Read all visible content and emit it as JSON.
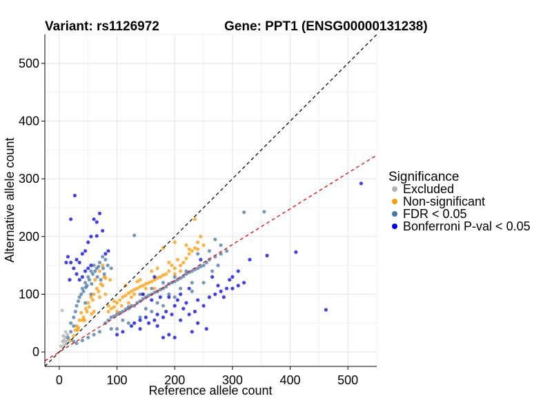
{
  "chart_data": {
    "type": "scatter",
    "title_left": "Variant: rs1126972",
    "title_right": "Gene: PPT1 (ENSG00000131238)",
    "xlabel": "Reference allele count",
    "ylabel": "Alternative allele count",
    "xlim": [
      -25,
      550
    ],
    "ylim": [
      -25,
      550
    ],
    "xticks": [
      0,
      100,
      200,
      300,
      400,
      500
    ],
    "yticks": [
      0,
      100,
      200,
      300,
      400,
      500
    ],
    "legend": {
      "title": "Significance",
      "position": "right",
      "entries": [
        {
          "label": "Excluded",
          "color": "#b3b3b3"
        },
        {
          "label": "Non-significant",
          "color": "#ff9900"
        },
        {
          "label": "FDR < 0.05",
          "color": "#4477aa"
        },
        {
          "label": "Bonferroni P-val < 0.05",
          "color": "#0000ee"
        }
      ]
    },
    "reference_lines": [
      {
        "name": "identity",
        "slope": 1,
        "intercept": 0,
        "color": "#000000",
        "style": "dashed"
      },
      {
        "name": "fitted",
        "slope": 0.62,
        "intercept": 0,
        "color": "#ee0000",
        "style": "dashed"
      }
    ],
    "series": [
      {
        "name": "Excluded",
        "color": "#b3b3b3",
        "points": [
          [
            5,
            72
          ],
          [
            8,
            20
          ],
          [
            10,
            25
          ],
          [
            12,
            15
          ],
          [
            6,
            18
          ],
          [
            14,
            30
          ],
          [
            3,
            10
          ],
          [
            9,
            12
          ],
          [
            16,
            22
          ],
          [
            11,
            35
          ],
          [
            7,
            28
          ],
          [
            13,
            19
          ]
        ]
      },
      {
        "name": "Non-significant",
        "color": "#ff9900",
        "points": [
          [
            20,
            20
          ],
          [
            28,
            38
          ],
          [
            35,
            55
          ],
          [
            42,
            60
          ],
          [
            50,
            85
          ],
          [
            55,
            95
          ],
          [
            60,
            100
          ],
          [
            65,
            110
          ],
          [
            72,
            118
          ],
          [
            80,
            128
          ],
          [
            30,
            45
          ],
          [
            38,
            68
          ],
          [
            46,
            75
          ],
          [
            58,
            90
          ],
          [
            68,
            105
          ],
          [
            40,
            55
          ],
          [
            48,
            70
          ],
          [
            52,
            78
          ],
          [
            25,
            28
          ],
          [
            33,
            42
          ],
          [
            62,
            125
          ],
          [
            70,
            140
          ],
          [
            75,
            150
          ],
          [
            78,
            130
          ],
          [
            85,
            80
          ],
          [
            95,
            78
          ],
          [
            105,
            90
          ],
          [
            115,
            98
          ],
          [
            125,
            105
          ],
          [
            135,
            110
          ],
          [
            145,
            115
          ],
          [
            155,
            120
          ],
          [
            165,
            125
          ],
          [
            175,
            130
          ],
          [
            185,
            135
          ],
          [
            195,
            150
          ],
          [
            205,
            160
          ],
          [
            215,
            155
          ],
          [
            225,
            170
          ],
          [
            235,
            180
          ],
          [
            250,
            185
          ],
          [
            90,
            75
          ],
          [
            100,
            85
          ],
          [
            110,
            95
          ],
          [
            120,
            102
          ],
          [
            130,
            108
          ],
          [
            140,
            113
          ],
          [
            150,
            118
          ],
          [
            160,
            122
          ],
          [
            170,
            128
          ],
          [
            180,
            133
          ],
          [
            190,
            140
          ],
          [
            200,
            145
          ],
          [
            210,
            150
          ],
          [
            220,
            162
          ],
          [
            230,
            175
          ],
          [
            240,
            190
          ],
          [
            115,
            115
          ],
          [
            135,
            122
          ],
          [
            170,
            145
          ],
          [
            180,
            180
          ],
          [
            200,
            190
          ],
          [
            220,
            185
          ],
          [
            235,
            230
          ],
          [
            245,
            200
          ],
          [
            140,
            125
          ],
          [
            160,
            140
          ],
          [
            100,
            70
          ],
          [
            120,
            85
          ],
          [
            130,
            100
          ],
          [
            85,
            70
          ],
          [
            150,
            110
          ],
          [
            210,
            140
          ],
          [
            190,
            155
          ],
          [
            225,
            178
          ],
          [
            240,
            178
          ],
          [
            95,
            88
          ],
          [
            108,
            80
          ],
          [
            125,
            95
          ],
          [
            145,
            100
          ],
          [
            165,
            110
          ],
          [
            200,
            135
          ],
          [
            60,
            70
          ],
          [
            70,
            95
          ],
          [
            80,
            100
          ],
          [
            32,
            38
          ],
          [
            44,
            55
          ],
          [
            56,
            66
          ],
          [
            75,
            115
          ],
          [
            88,
            125
          ]
        ]
      },
      {
        "name": "FDR < 0.05",
        "color": "#4477aa",
        "points": [
          [
            30,
            80
          ],
          [
            35,
            95
          ],
          [
            40,
            110
          ],
          [
            45,
            120
          ],
          [
            50,
            130
          ],
          [
            55,
            140
          ],
          [
            60,
            150
          ],
          [
            65,
            145
          ],
          [
            70,
            155
          ],
          [
            75,
            165
          ],
          [
            80,
            160
          ],
          [
            38,
            100
          ],
          [
            42,
            105
          ],
          [
            48,
            115
          ],
          [
            52,
            125
          ],
          [
            58,
            135
          ],
          [
            62,
            140
          ],
          [
            68,
            148
          ],
          [
            72,
            125
          ],
          [
            78,
            135
          ],
          [
            20,
            50
          ],
          [
            25,
            60
          ],
          [
            28,
            70
          ],
          [
            33,
            88
          ],
          [
            46,
            112
          ],
          [
            56,
            118
          ],
          [
            66,
            130
          ],
          [
            76,
            145
          ],
          [
            84,
            150
          ],
          [
            90,
            145
          ],
          [
            80,
            50
          ],
          [
            90,
            60
          ],
          [
            100,
            65
          ],
          [
            110,
            70
          ],
          [
            120,
            78
          ],
          [
            130,
            80
          ],
          [
            140,
            88
          ],
          [
            150,
            95
          ],
          [
            160,
            100
          ],
          [
            170,
            105
          ],
          [
            180,
            110
          ],
          [
            190,
            118
          ],
          [
            200,
            122
          ],
          [
            210,
            128
          ],
          [
            220,
            135
          ],
          [
            230,
            140
          ],
          [
            240,
            145
          ],
          [
            250,
            150
          ],
          [
            260,
            160
          ],
          [
            270,
            165
          ],
          [
            280,
            170
          ],
          [
            290,
            175
          ],
          [
            85,
            55
          ],
          [
            95,
            62
          ],
          [
            105,
            68
          ],
          [
            115,
            74
          ],
          [
            125,
            80
          ],
          [
            135,
            85
          ],
          [
            145,
            92
          ],
          [
            155,
            98
          ],
          [
            165,
            103
          ],
          [
            175,
            108
          ],
          [
            185,
            113
          ],
          [
            195,
            120
          ],
          [
            205,
            125
          ],
          [
            215,
            131
          ],
          [
            225,
            138
          ],
          [
            235,
            143
          ],
          [
            245,
            148
          ],
          [
            255,
            155
          ],
          [
            150,
            75
          ],
          [
            170,
            85
          ],
          [
            190,
            100
          ],
          [
            210,
            110
          ],
          [
            230,
            120
          ],
          [
            140,
            100
          ],
          [
            160,
            110
          ],
          [
            180,
            120
          ],
          [
            200,
            130
          ],
          [
            220,
            140
          ],
          [
            100,
            40
          ],
          [
            120,
            50
          ],
          [
            140,
            60
          ],
          [
            160,
            70
          ],
          [
            180,
            80
          ],
          [
            130,
            202
          ],
          [
            270,
            195
          ],
          [
            280,
            185
          ],
          [
            320,
            242
          ],
          [
            355,
            243
          ],
          [
            240,
            170
          ],
          [
            260,
            175
          ],
          [
            120,
            75
          ],
          [
            110,
            55
          ],
          [
            90,
            40
          ],
          [
            70,
            35
          ],
          [
            60,
            30
          ],
          [
            50,
            25
          ],
          [
            40,
            20
          ],
          [
            30,
            15
          ],
          [
            25,
            18
          ],
          [
            200,
            95
          ],
          [
            230,
            105
          ],
          [
            250,
            120
          ],
          [
            265,
            140
          ],
          [
            275,
            150
          ],
          [
            20,
            35
          ],
          [
            25,
            45
          ],
          [
            15,
            25
          ],
          [
            45,
            85
          ],
          [
            55,
            100
          ]
        ]
      },
      {
        "name": "Bonferroni P-val < 0.05",
        "color": "#0000ee",
        "points": [
          [
            20,
            230
          ],
          [
            27,
            271
          ],
          [
            65,
            201
          ],
          [
            70,
            240
          ],
          [
            75,
            210
          ],
          [
            80,
            170
          ],
          [
            85,
            175
          ],
          [
            50,
            190
          ],
          [
            55,
            200
          ],
          [
            60,
            230
          ],
          [
            65,
            225
          ],
          [
            40,
            170
          ],
          [
            45,
            175
          ],
          [
            35,
            155
          ],
          [
            30,
            160
          ],
          [
            40,
            130
          ],
          [
            45,
            140
          ],
          [
            50,
            145
          ],
          [
            55,
            150
          ],
          [
            15,
            165
          ],
          [
            20,
            155
          ],
          [
            25,
            145
          ],
          [
            30,
            135
          ],
          [
            35,
            125
          ],
          [
            12,
            155
          ],
          [
            18,
            125
          ],
          [
            145,
            100
          ],
          [
            160,
            90
          ],
          [
            175,
            95
          ],
          [
            190,
            95
          ],
          [
            205,
            90
          ],
          [
            220,
            85
          ],
          [
            240,
            90
          ],
          [
            260,
            95
          ],
          [
            270,
            100
          ],
          [
            280,
            105
          ],
          [
            290,
            110
          ],
          [
            300,
            110
          ],
          [
            310,
            115
          ],
          [
            320,
            120
          ],
          [
            150,
            60
          ],
          [
            165,
            55
          ],
          [
            180,
            60
          ],
          [
            195,
            65
          ],
          [
            210,
            55
          ],
          [
            225,
            65
          ],
          [
            240,
            50
          ],
          [
            255,
            40
          ],
          [
            190,
            30
          ],
          [
            230,
            35
          ],
          [
            200,
            25
          ],
          [
            180,
            25
          ],
          [
            170,
            45
          ],
          [
            155,
            50
          ],
          [
            140,
            40
          ],
          [
            125,
            45
          ],
          [
            110,
            35
          ],
          [
            100,
            30
          ],
          [
            330,
            160
          ],
          [
            360,
            167
          ],
          [
            410,
            173
          ],
          [
            462,
            73
          ],
          [
            523,
            292
          ],
          [
            310,
            140
          ],
          [
            295,
            125
          ],
          [
            285,
            95
          ],
          [
            250,
            80
          ],
          [
            235,
            70
          ],
          [
            215,
            75
          ],
          [
            200,
            80
          ],
          [
            185,
            70
          ],
          [
            170,
            65
          ],
          [
            140,
            55
          ],
          [
            130,
            50
          ],
          [
            165,
            130
          ],
          [
            245,
            160
          ],
          [
            265,
            130
          ],
          [
            275,
            115
          ],
          [
            300,
            130
          ],
          [
            210,
            100
          ],
          [
            225,
            110
          ]
        ]
      }
    ]
  }
}
